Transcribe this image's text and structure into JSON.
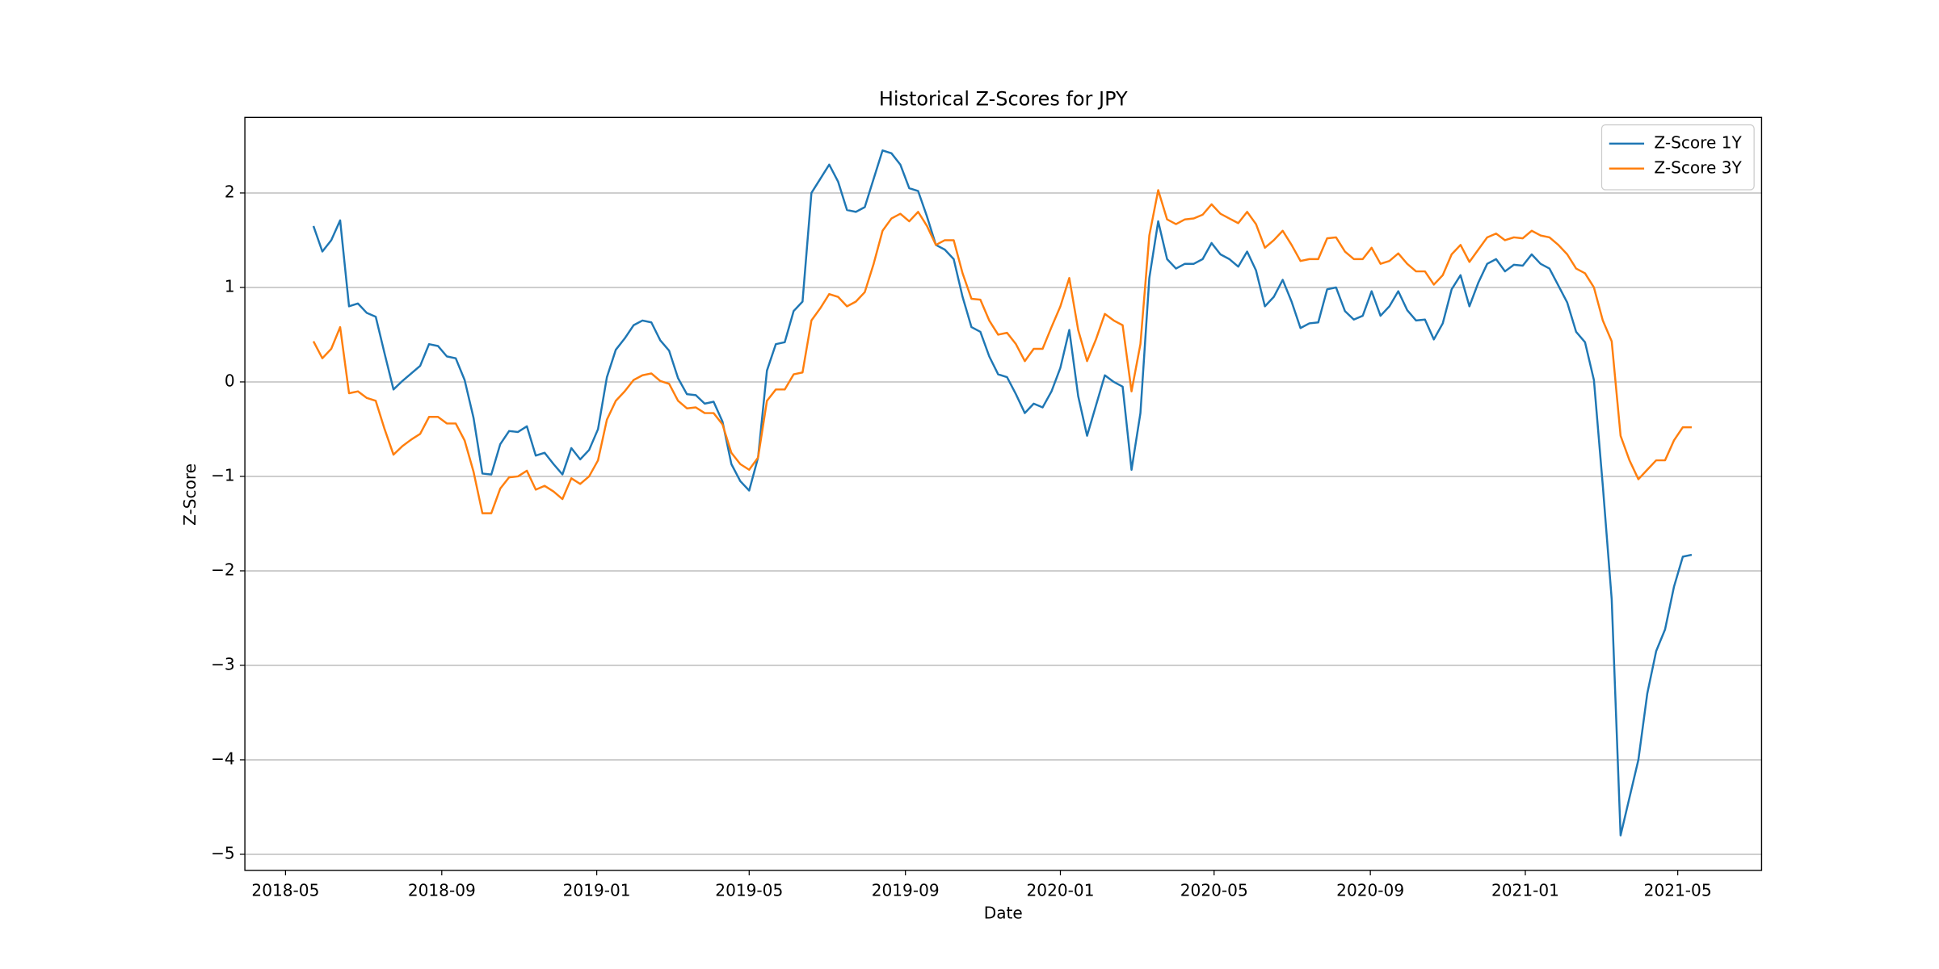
{
  "chart_data": {
    "type": "line",
    "title": "Historical Z-Scores for JPY",
    "xlabel": "Date",
    "ylabel": "Z-Score",
    "x": [
      "2018-05-23",
      "2018-05-30",
      "2018-06-06",
      "2018-06-13",
      "2018-06-20",
      "2018-06-27",
      "2018-07-04",
      "2018-07-11",
      "2018-07-18",
      "2018-07-25",
      "2018-08-01",
      "2018-08-08",
      "2018-08-15",
      "2018-08-22",
      "2018-08-29",
      "2018-09-05",
      "2018-09-12",
      "2018-09-19",
      "2018-09-26",
      "2018-10-03",
      "2018-10-10",
      "2018-10-17",
      "2018-10-24",
      "2018-10-31",
      "2018-11-07",
      "2018-11-14",
      "2018-11-21",
      "2018-11-28",
      "2018-12-05",
      "2018-12-12",
      "2018-12-19",
      "2018-12-26",
      "2019-01-02",
      "2019-01-09",
      "2019-01-16",
      "2019-01-23",
      "2019-01-30",
      "2019-02-06",
      "2019-02-13",
      "2019-02-20",
      "2019-02-27",
      "2019-03-06",
      "2019-03-13",
      "2019-03-20",
      "2019-03-27",
      "2019-04-03",
      "2019-04-10",
      "2019-04-17",
      "2019-04-24",
      "2019-05-01",
      "2019-05-08",
      "2019-05-15",
      "2019-05-22",
      "2019-05-29",
      "2019-06-05",
      "2019-06-12",
      "2019-06-19",
      "2019-06-26",
      "2019-07-03",
      "2019-07-10",
      "2019-07-17",
      "2019-07-24",
      "2019-07-31",
      "2019-08-07",
      "2019-08-14",
      "2019-08-21",
      "2019-08-28",
      "2019-09-04",
      "2019-09-11",
      "2019-09-18",
      "2019-09-25",
      "2019-10-02",
      "2019-10-09",
      "2019-10-16",
      "2019-10-23",
      "2019-10-30",
      "2019-11-06",
      "2019-11-13",
      "2019-11-20",
      "2019-11-27",
      "2019-12-04",
      "2019-12-11",
      "2019-12-18",
      "2019-12-25",
      "2020-01-01",
      "2020-01-08",
      "2020-01-15",
      "2020-01-22",
      "2020-01-29",
      "2020-02-05",
      "2020-02-12",
      "2020-02-19",
      "2020-02-26",
      "2020-03-04",
      "2020-03-11",
      "2020-03-18",
      "2020-03-25",
      "2020-04-01",
      "2020-04-08",
      "2020-04-15",
      "2020-04-22",
      "2020-04-29",
      "2020-05-06",
      "2020-05-13",
      "2020-05-20",
      "2020-05-27",
      "2020-06-03",
      "2020-06-10",
      "2020-06-17",
      "2020-06-24",
      "2020-07-01",
      "2020-07-08",
      "2020-07-15",
      "2020-07-22",
      "2020-07-29",
      "2020-08-05",
      "2020-08-12",
      "2020-08-19",
      "2020-08-26",
      "2020-09-02",
      "2020-09-09",
      "2020-09-16",
      "2020-09-23",
      "2020-09-30",
      "2020-10-07",
      "2020-10-14",
      "2020-10-21",
      "2020-10-28",
      "2020-11-04",
      "2020-11-11",
      "2020-11-18",
      "2020-11-25",
      "2020-12-02",
      "2020-12-09",
      "2020-12-16",
      "2020-12-23",
      "2020-12-30",
      "2021-01-06",
      "2021-01-13",
      "2021-01-20",
      "2021-01-27",
      "2021-02-03",
      "2021-02-10",
      "2021-02-17",
      "2021-02-24",
      "2021-03-03",
      "2021-03-10",
      "2021-03-17",
      "2021-03-24",
      "2021-03-31",
      "2021-04-07",
      "2021-04-14",
      "2021-04-21",
      "2021-04-28",
      "2021-05-05",
      "2021-05-12"
    ],
    "series": [
      {
        "name": "Z-Score 1Y",
        "color": "#1f77b4",
        "values": [
          1.65,
          1.38,
          1.5,
          1.71,
          0.8,
          0.83,
          0.73,
          0.69,
          0.3,
          -0.08,
          0.01,
          0.09,
          0.17,
          0.4,
          0.38,
          0.27,
          0.25,
          0.02,
          -0.38,
          -0.97,
          -0.98,
          -0.66,
          -0.52,
          -0.53,
          -0.47,
          -0.78,
          -0.75,
          -0.87,
          -0.98,
          -0.7,
          -0.82,
          -0.72,
          -0.5,
          0.05,
          0.34,
          0.46,
          0.6,
          0.65,
          0.63,
          0.44,
          0.33,
          0.04,
          -0.13,
          -0.14,
          -0.23,
          -0.21,
          -0.42,
          -0.87,
          -1.05,
          -1.15,
          -0.8,
          0.12,
          0.4,
          0.42,
          0.75,
          0.85,
          2.0,
          2.15,
          2.3,
          2.12,
          1.82,
          1.8,
          1.85,
          2.15,
          2.45,
          2.42,
          2.3,
          2.05,
          2.02,
          1.75,
          1.45,
          1.4,
          1.3,
          0.9,
          0.58,
          0.53,
          0.27,
          0.08,
          0.05,
          -0.13,
          -0.33,
          -0.23,
          -0.27,
          -0.1,
          0.15,
          0.55,
          -0.15,
          -0.57,
          -0.25,
          0.07,
          0.0,
          -0.05,
          -0.93,
          -0.33,
          1.1,
          1.7,
          1.3,
          1.2,
          1.25,
          1.25,
          1.3,
          1.47,
          1.35,
          1.3,
          1.22,
          1.38,
          1.18,
          0.8,
          0.9,
          1.08,
          0.85,
          0.57,
          0.62,
          0.63,
          0.98,
          1.0,
          0.75,
          0.66,
          0.7,
          0.96,
          0.7,
          0.8,
          0.96,
          0.76,
          0.65,
          0.66,
          0.45,
          0.62,
          0.98,
          1.13,
          0.8,
          1.05,
          1.25,
          1.3,
          1.17,
          1.24,
          1.23,
          1.35,
          1.25,
          1.2,
          1.02,
          0.84,
          0.53,
          0.42,
          0.02,
          -1.1,
          -2.3,
          -4.8,
          -4.4,
          -4.0,
          -3.3,
          -2.85,
          -2.62,
          -2.17,
          -1.85,
          -1.83
        ]
      },
      {
        "name": "Z-Score 3Y",
        "color": "#ff7f0e",
        "values": [
          0.43,
          0.25,
          0.35,
          0.58,
          -0.12,
          -0.1,
          -0.17,
          -0.2,
          -0.5,
          -0.77,
          -0.68,
          -0.61,
          -0.55,
          -0.37,
          -0.37,
          -0.44,
          -0.44,
          -0.62,
          -0.95,
          -1.39,
          -1.39,
          -1.13,
          -1.01,
          -1.0,
          -0.94,
          -1.14,
          -1.1,
          -1.16,
          -1.24,
          -1.02,
          -1.08,
          -1.0,
          -0.83,
          -0.4,
          -0.2,
          -0.1,
          0.02,
          0.07,
          0.09,
          0.01,
          -0.02,
          -0.2,
          -0.28,
          -0.27,
          -0.33,
          -0.33,
          -0.45,
          -0.75,
          -0.87,
          -0.93,
          -0.8,
          -0.2,
          -0.08,
          -0.08,
          0.08,
          0.1,
          0.65,
          0.78,
          0.93,
          0.9,
          0.8,
          0.85,
          0.95,
          1.25,
          1.6,
          1.73,
          1.78,
          1.7,
          1.8,
          1.65,
          1.45,
          1.5,
          1.5,
          1.15,
          0.88,
          0.87,
          0.65,
          0.5,
          0.52,
          0.4,
          0.22,
          0.35,
          0.35,
          0.58,
          0.8,
          1.1,
          0.55,
          0.22,
          0.45,
          0.72,
          0.65,
          0.6,
          -0.1,
          0.4,
          1.55,
          2.03,
          1.72,
          1.67,
          1.72,
          1.73,
          1.77,
          1.88,
          1.78,
          1.73,
          1.68,
          1.8,
          1.67,
          1.42,
          1.5,
          1.6,
          1.45,
          1.28,
          1.3,
          1.3,
          1.52,
          1.53,
          1.38,
          1.3,
          1.3,
          1.42,
          1.25,
          1.28,
          1.36,
          1.25,
          1.17,
          1.17,
          1.03,
          1.13,
          1.35,
          1.45,
          1.27,
          1.4,
          1.53,
          1.57,
          1.5,
          1.53,
          1.52,
          1.6,
          1.55,
          1.53,
          1.45,
          1.35,
          1.2,
          1.15,
          1.0,
          0.65,
          0.43,
          -0.57,
          -0.83,
          -1.03,
          -0.93,
          -0.83,
          -0.83,
          -0.62,
          -0.48,
          -0.48
        ]
      }
    ],
    "xlim": [
      "2018-03-30",
      "2021-07-06"
    ],
    "xticks": [
      "2018-05",
      "2018-09",
      "2019-01",
      "2019-05",
      "2019-09",
      "2020-01",
      "2020-05",
      "2020-09",
      "2021-01",
      "2021-05"
    ],
    "ylim": [
      -5.17,
      2.8
    ],
    "yticks": [
      {
        "value": -5,
        "label": "−5"
      },
      {
        "value": -4,
        "label": "−4"
      },
      {
        "value": -3,
        "label": "−3"
      },
      {
        "value": -2,
        "label": "−2"
      },
      {
        "value": -1,
        "label": "−1"
      },
      0,
      1,
      2
    ],
    "grid": "y",
    "legend": "upper right"
  }
}
